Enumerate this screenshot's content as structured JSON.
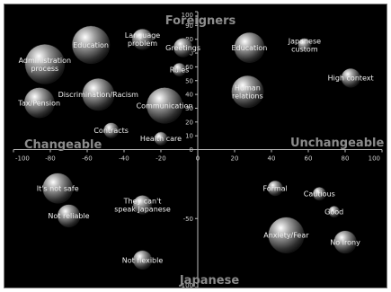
{
  "chart_data": {
    "type": "scatter",
    "xlim": [
      -100,
      100
    ],
    "ylim": [
      -100,
      100
    ],
    "x_ticks": [
      "-100",
      "-80",
      "-60",
      "-40",
      "-20",
      "0",
      "20",
      "40",
      "60",
      "80",
      "100"
    ],
    "y_ticks": [
      {
        "v": 100,
        "t": "100"
      },
      {
        "v": 90,
        "t": "90"
      },
      {
        "v": 80,
        "t": "80"
      },
      {
        "v": 70,
        "t": "70"
      },
      {
        "v": 60,
        "t": "60"
      },
      {
        "v": 50,
        "t": "50"
      },
      {
        "v": 40,
        "t": "40"
      },
      {
        "v": 30,
        "t": "30"
      },
      {
        "v": 20,
        "t": "20"
      },
      {
        "v": 10,
        "t": "10"
      },
      {
        "v": 0,
        "t": "0"
      },
      {
        "v": -50,
        "t": "-50"
      },
      {
        "v": -100,
        "t": "-100"
      }
    ],
    "quadrant_labels": {
      "top": "Foreigners",
      "bottom": "Japanese",
      "left": "Changeable",
      "right": "Unchangeable"
    },
    "grid": false,
    "legend": "none",
    "bubble_color": "#9a9a9a",
    "bubbles": [
      {
        "label": "Administration process",
        "x": -83,
        "y": 62,
        "r": 21
      },
      {
        "label": "Education",
        "x": -58,
        "y": 76,
        "r": 20
      },
      {
        "label": "Language problem",
        "x": -30,
        "y": 80,
        "r": 11
      },
      {
        "label": "Greetings",
        "x": -8,
        "y": 74,
        "r": 10
      },
      {
        "label": "Rules",
        "x": -10,
        "y": 58,
        "r": 7
      },
      {
        "label": "Tax/Pension",
        "x": -86,
        "y": 34,
        "r": 16
      },
      {
        "label": "Discrimination/Racism",
        "x": -54,
        "y": 40,
        "r": 17
      },
      {
        "label": "Communication",
        "x": -18,
        "y": 32,
        "r": 19
      },
      {
        "label": "Contracts",
        "x": -47,
        "y": 14,
        "r": 8
      },
      {
        "label": "Health care",
        "x": -20,
        "y": 8,
        "r": 7
      },
      {
        "label": "Education",
        "x": 28,
        "y": 74,
        "r": 16
      },
      {
        "label": "Japanese custom",
        "x": 58,
        "y": 76,
        "r": 7
      },
      {
        "label": "High context",
        "x": 83,
        "y": 52,
        "r": 10
      },
      {
        "label": "Human relations",
        "x": 27,
        "y": 42,
        "r": 17
      },
      {
        "label": "It's not safe",
        "x": -76,
        "y": -28,
        "r": 16
      },
      {
        "label": "Not reliable",
        "x": -70,
        "y": -48,
        "r": 12
      },
      {
        "label": "They can't speak Japanese",
        "x": -30,
        "y": -40,
        "r": 10
      },
      {
        "label": "Not flexible",
        "x": -30,
        "y": -80,
        "r": 10
      },
      {
        "label": "Formal",
        "x": 42,
        "y": -28,
        "r": 8
      },
      {
        "label": "Cautious",
        "x": 66,
        "y": -32,
        "r": 7
      },
      {
        "label": "Good",
        "x": 74,
        "y": -45,
        "r": 6
      },
      {
        "label": "Anxiety/Fear",
        "x": 48,
        "y": -62,
        "r": 19
      },
      {
        "label": "No Irony",
        "x": 80,
        "y": -67,
        "r": 12
      }
    ]
  }
}
